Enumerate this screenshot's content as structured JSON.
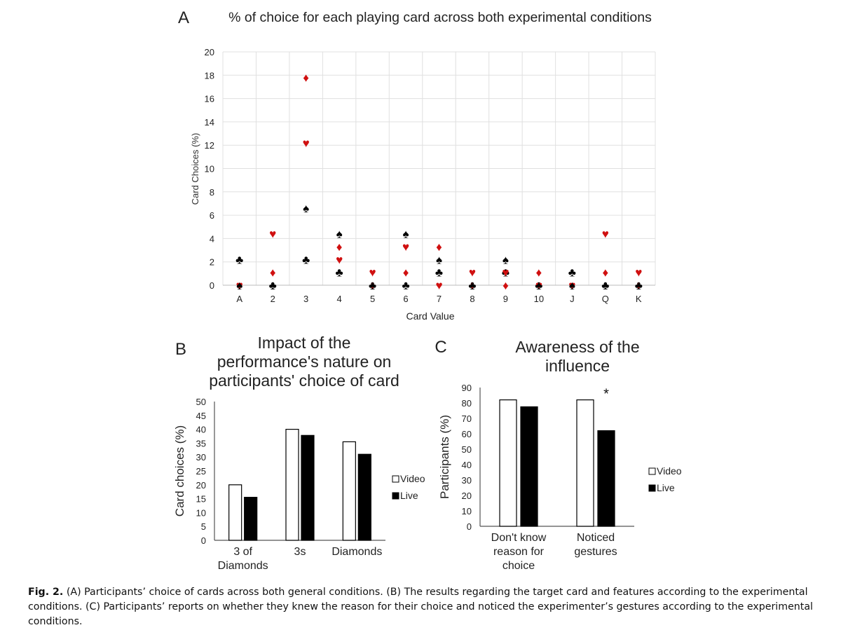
{
  "chart_data": [
    {
      "type": "scatter",
      "panel_letter": "A",
      "title": "% of choice for each playing card across both experimental conditions",
      "xlabel": "Card Value",
      "ylabel": "Card Choices (%)",
      "ylim": [
        0,
        20
      ],
      "yticks": [
        "0",
        "2",
        "4",
        "6",
        "8",
        "10",
        "12",
        "14",
        "16",
        "18",
        "20"
      ],
      "categories": [
        "A",
        "2",
        "3",
        "4",
        "5",
        "6",
        "7",
        "8",
        "9",
        "10",
        "J",
        "Q",
        "K"
      ],
      "grid": true,
      "series": [
        {
          "suit": "clubs",
          "color": "#000000",
          "values": [
            2.2,
            0,
            2.2,
            1.1,
            0,
            0,
            1.1,
            0,
            1.1,
            0,
            1.1,
            0,
            0
          ]
        },
        {
          "suit": "diamonds",
          "color": "#d01010",
          "values": [
            0,
            1.1,
            17.8,
            3.3,
            0,
            1.1,
            3.3,
            0,
            0,
            1.1,
            0,
            1.1,
            0
          ]
        },
        {
          "suit": "hearts",
          "color": "#d01010",
          "values": [
            0,
            4.4,
            12.2,
            2.2,
            1.1,
            3.3,
            0,
            1.1,
            1.1,
            0,
            0,
            4.4,
            1.1
          ]
        },
        {
          "suit": "spades",
          "color": "#000000",
          "values": [
            0,
            0,
            6.6,
            4.4,
            0,
            4.4,
            2.2,
            0,
            2.2,
            0,
            0,
            0,
            0
          ]
        }
      ]
    },
    {
      "type": "bar",
      "panel_letter": "B",
      "title_lines": [
        "Impact of the",
        "performance's nature on",
        "participants' choice of card"
      ],
      "ylabel": "Card choices (%)",
      "ylim": [
        0,
        50
      ],
      "yticks": [
        "0",
        "5",
        "10",
        "15",
        "20",
        "25",
        "30",
        "35",
        "40",
        "45",
        "50"
      ],
      "categories": [
        [
          "3 of",
          "Diamonds"
        ],
        [
          "3s"
        ],
        [
          "Diamonds"
        ]
      ],
      "series": [
        {
          "name": "Video",
          "fill": "#ffffff",
          "values": [
            20,
            40,
            35.5
          ]
        },
        {
          "name": "Live",
          "fill": "#000000",
          "values": [
            15.5,
            37.8,
            31
          ]
        }
      ],
      "legend": "right"
    },
    {
      "type": "bar",
      "panel_letter": "C",
      "title_lines": [
        "Awareness of the",
        "influence"
      ],
      "ylabel": "Participants (%)",
      "ylim": [
        0,
        90
      ],
      "yticks": [
        "0",
        "10",
        "20",
        "30",
        "40",
        "50",
        "60",
        "70",
        "80",
        "90"
      ],
      "categories": [
        [
          "Don't know",
          "reason for",
          "choice"
        ],
        [
          "Noticed",
          "gestures"
        ]
      ],
      "series": [
        {
          "name": "Video",
          "fill": "#ffffff",
          "values": [
            82,
            82
          ]
        },
        {
          "name": "Live",
          "fill": "#000000",
          "values": [
            77.5,
            62
          ]
        }
      ],
      "significance": [
        "",
        "*"
      ],
      "legend": "right"
    }
  ],
  "caption": {
    "label": "Fig. 2.",
    "text": "(A) Participants’ choice of cards across both general conditions. (B) The results regarding the target card and features according to the experimental conditions. (C) Participants’ reports on whether they knew the reason for their choice and noticed the experimenter’s gestures according to the experimental conditions."
  }
}
